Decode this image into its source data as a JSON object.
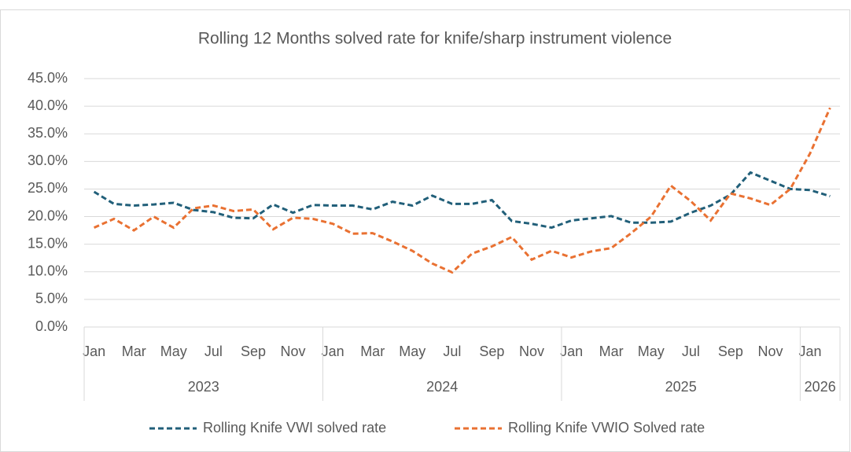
{
  "chart_data": {
    "type": "line",
    "title": "Rolling 12 Months solved rate for knife/sharp instrument violence",
    "categories": [
      "Jan",
      null,
      "Mar",
      null,
      "May",
      null,
      "Jul",
      null,
      "Sep",
      null,
      "Nov",
      null,
      "Jan",
      null,
      "Mar",
      null,
      "May",
      null,
      "Jul",
      null,
      "Sep",
      null,
      "Nov",
      null,
      "Jan",
      null,
      "Mar",
      null,
      "May",
      null,
      "Jul",
      null,
      "Sep",
      null,
      "Nov",
      null,
      "Jan",
      null
    ],
    "years": [
      "2023",
      "2024",
      "2025",
      "2026"
    ],
    "series": [
      {
        "name": "Rolling Knife VWI solved rate",
        "color": "#215f79",
        "values": [
          24.5,
          22.3,
          22.0,
          22.2,
          22.5,
          21.2,
          20.8,
          19.8,
          19.7,
          22.2,
          20.7,
          22.1,
          22.0,
          22.0,
          21.3,
          22.7,
          22.0,
          23.8,
          22.3,
          22.3,
          23.0,
          19.2,
          18.7,
          18.0,
          19.3,
          19.7,
          20.1,
          18.9,
          18.9,
          19.1,
          20.7,
          22.0,
          24.0,
          28.0,
          26.5,
          25.0,
          24.8,
          23.7
        ]
      },
      {
        "name": "Rolling Knife VWIO Solved rate",
        "color": "#e97132",
        "values": [
          18.0,
          19.6,
          17.5,
          20.0,
          18.0,
          21.5,
          22.0,
          21.0,
          21.3,
          17.7,
          19.8,
          19.6,
          18.7,
          16.9,
          17.0,
          15.5,
          13.8,
          11.5,
          9.9,
          13.3,
          14.6,
          16.3,
          12.2,
          13.8,
          12.6,
          13.7,
          14.3,
          17.0,
          20.0,
          25.6,
          22.8,
          19.3,
          24.2,
          23.3,
          22.1,
          25.0,
          31.5,
          39.7
        ]
      }
    ],
    "ylim": [
      0,
      45
    ],
    "yticks": [
      {
        "value": 0,
        "label": "0.0%"
      },
      {
        "value": 5,
        "label": "5.0%"
      },
      {
        "value": 10,
        "label": "10.0%"
      },
      {
        "value": 15,
        "label": "15.0%"
      },
      {
        "value": 20,
        "label": "20.0%"
      },
      {
        "value": 25,
        "label": "25.0%"
      },
      {
        "value": 30,
        "label": "30.0%"
      },
      {
        "value": 35,
        "label": "35.0%"
      },
      {
        "value": 40,
        "label": "40.0%"
      },
      {
        "value": 45,
        "label": "45.0%"
      }
    ],
    "grid": true
  }
}
